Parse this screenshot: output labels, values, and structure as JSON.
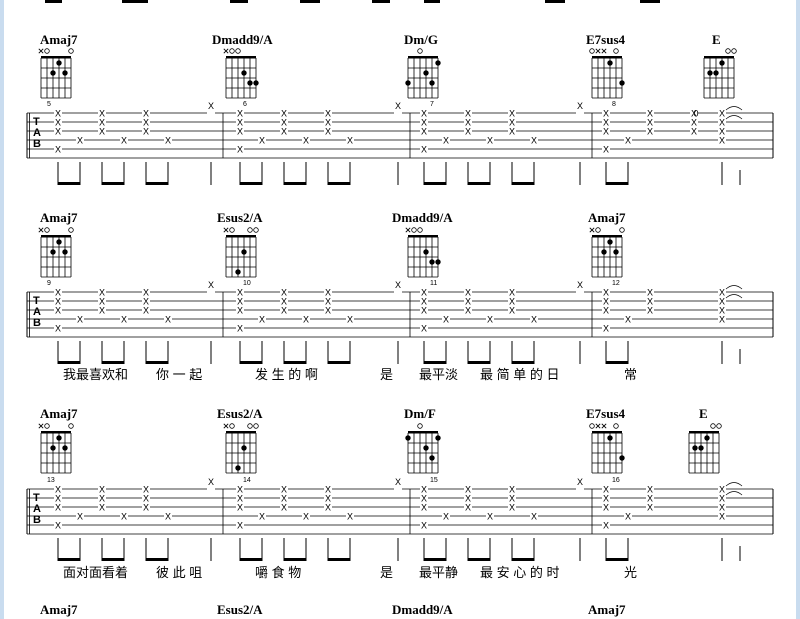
{
  "systems": [
    {
      "chords": [
        "Amaj7",
        "Dmadd9/A",
        "Dm/G",
        "E7sus4",
        "E"
      ],
      "measure_numbers": [
        "5",
        "6",
        "7",
        "8"
      ],
      "lyrics": []
    },
    {
      "chords": [
        "Amaj7",
        "Esus2/A",
        "Dmadd9/A",
        "Amaj7"
      ],
      "measure_numbers": [
        "9",
        "10",
        "11",
        "12"
      ],
      "lyrics": [
        "我最喜欢和",
        "你 一 起",
        "发 生 的 啊",
        "是",
        "最平淡",
        "最 简 单 的 日",
        "常"
      ]
    },
    {
      "chords": [
        "Amaj7",
        "Esus2/A",
        "Dm/F",
        "E7sus4",
        "E"
      ],
      "measure_numbers": [
        "13",
        "14",
        "15",
        "16"
      ],
      "lyrics": [
        "面对面看着",
        "彼 此 咀",
        "嚼 食 物",
        "是",
        "最平静",
        "最 安 心 的 时",
        "光"
      ]
    },
    {
      "chords": [
        "Amaj7",
        "Esus2/A",
        "Dmadd9/A",
        "Amaj7"
      ]
    }
  ],
  "tab_clef": [
    "T",
    "A",
    "B"
  ],
  "chord_shapes": {
    "Amaj7": {
      "markers": [
        "x",
        "o",
        "",
        "",
        "",
        "o"
      ],
      "dots": [
        [
          3,
          1
        ],
        [
          2,
          2
        ],
        [
          4,
          2
        ]
      ]
    },
    "Dmadd9/A": {
      "markers": [
        "x",
        "o",
        "o",
        "",
        "",
        ""
      ],
      "dots": [
        [
          3,
          2
        ],
        [
          4,
          3
        ],
        [
          5,
          3
        ]
      ]
    },
    "Dm/G": {
      "markers": [
        "",
        "",
        "o",
        "",
        "",
        ""
      ],
      "dots": [
        [
          0,
          3
        ],
        [
          3,
          2
        ],
        [
          4,
          3
        ],
        [
          5,
          1
        ]
      ]
    },
    "E7sus4": {
      "markers": [
        "o",
        "x",
        "x",
        "",
        "o",
        ""
      ],
      "dots": [
        [
          3,
          1
        ],
        [
          5,
          3
        ]
      ]
    },
    "E": {
      "markers": [
        "",
        "",
        "",
        "",
        "o",
        "o"
      ],
      "dots": [
        [
          1,
          2
        ],
        [
          2,
          2
        ],
        [
          3,
          1
        ]
      ]
    },
    "Esus2/A": {
      "markers": [
        "x",
        "o",
        "",
        "",
        "o",
        "o"
      ],
      "dots": [
        [
          2,
          4
        ],
        [
          3,
          2
        ]
      ]
    },
    "Dm/F": {
      "markers": [
        "",
        "",
        "o",
        "",
        "",
        ""
      ],
      "dots": [
        [
          0,
          1
        ],
        [
          3,
          2
        ],
        [
          4,
          3
        ],
        [
          5,
          1
        ]
      ]
    }
  },
  "tab_marks": {
    "cross": "X",
    "open_string": "0"
  }
}
